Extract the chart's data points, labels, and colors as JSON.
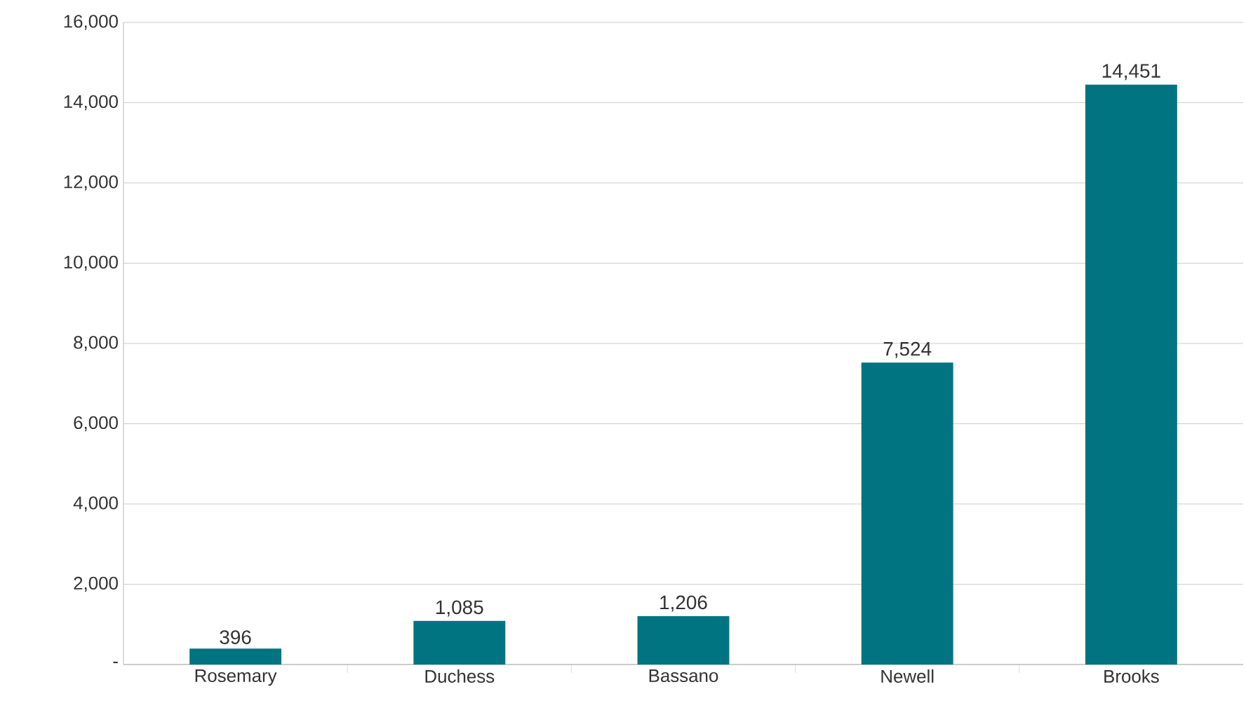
{
  "chart_data": {
    "type": "bar",
    "categories": [
      "Rosemary",
      "Duchess",
      "Bassano",
      "Newell",
      "Brooks"
    ],
    "values": [
      396,
      1085,
      1206,
      7524,
      14451
    ],
    "value_labels": [
      "396",
      "1,085",
      "1,206",
      "7,524",
      "14,451"
    ],
    "color": "#007480",
    "ylim": [
      0,
      16000
    ],
    "yticks": [
      {
        "value": 0,
        "label": "-"
      },
      {
        "value": 2000,
        "label": "2,000"
      },
      {
        "value": 4000,
        "label": "4,000"
      },
      {
        "value": 6000,
        "label": "6,000"
      },
      {
        "value": 8000,
        "label": "8,000"
      },
      {
        "value": 10000,
        "label": "10,000"
      },
      {
        "value": 12000,
        "label": "12,000"
      },
      {
        "value": 14000,
        "label": "14,000"
      },
      {
        "value": 16000,
        "label": "16,000"
      }
    ],
    "grid": "y"
  }
}
